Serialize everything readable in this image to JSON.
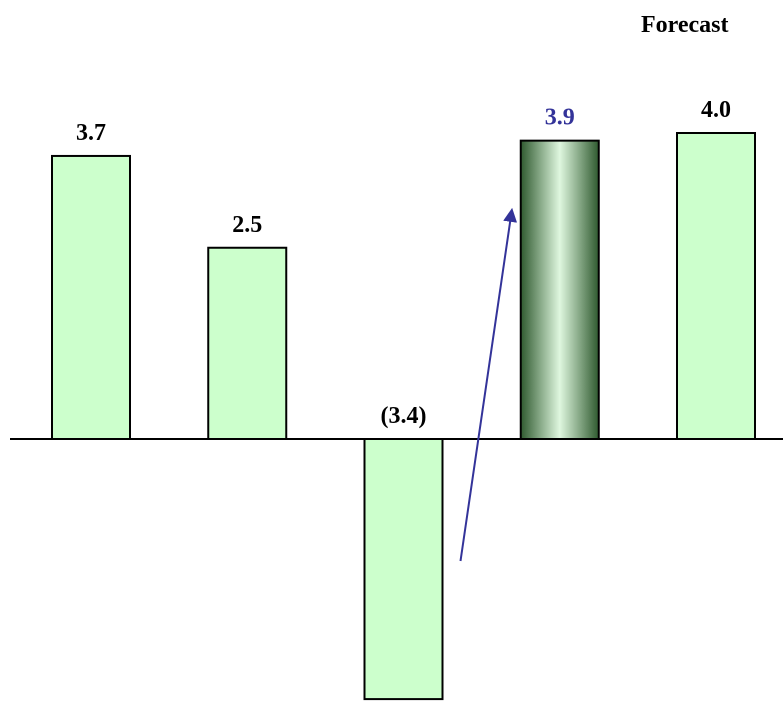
{
  "annotations": {
    "forecast_label": "Forecast"
  },
  "colors": {
    "bar_fill": "#ccffcc",
    "bar_stroke": "#000000",
    "highlight_dark": "#2f5a2f",
    "highlight_light": "#dff7df",
    "arrow": "#333399",
    "highlight_label": "#333399",
    "label": "#000000"
  },
  "chart_data": {
    "type": "bar",
    "title": "",
    "xlabel": "",
    "ylabel": "",
    "categories": [
      "",
      "",
      "",
      "",
      ""
    ],
    "values": [
      3.7,
      2.5,
      -3.4,
      3.9,
      4.0
    ],
    "labels": [
      "3.7",
      "2.5",
      "(3.4)",
      "3.9",
      "4.0"
    ],
    "highlight_index": 3,
    "forecast_indices": [
      3,
      4
    ],
    "arrow": {
      "from": "bar 3 (negative)",
      "to": "bar 4 (highlighted)"
    },
    "grid": false,
    "legend": "none"
  }
}
